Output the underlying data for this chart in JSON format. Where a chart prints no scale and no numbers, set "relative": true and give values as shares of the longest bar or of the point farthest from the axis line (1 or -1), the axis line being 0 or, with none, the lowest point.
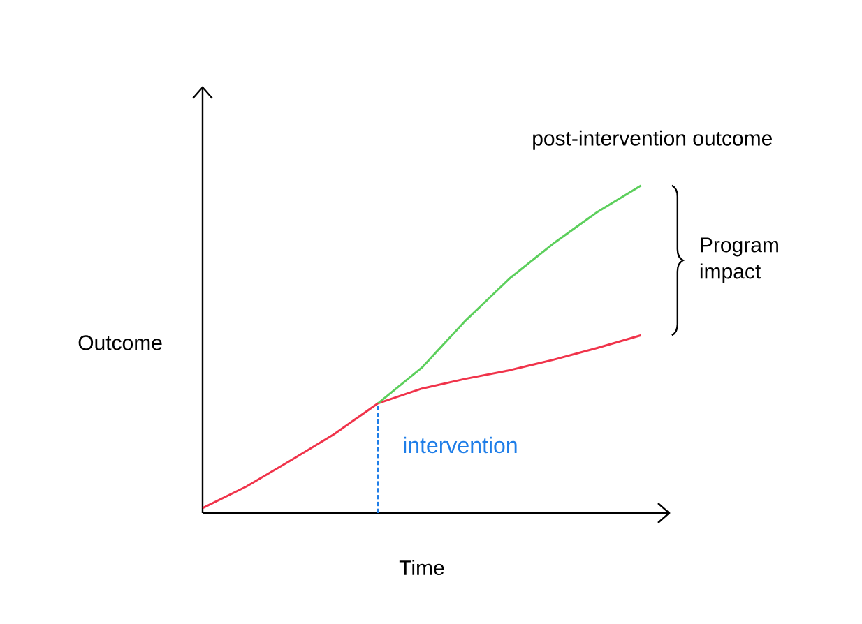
{
  "chart_data": {
    "type": "line",
    "relative": true,
    "xlabel": "Time",
    "ylabel": "Outcome",
    "categories": [
      null,
      null,
      null,
      null,
      null,
      null,
      null,
      null,
      null,
      null,
      null
    ],
    "series": [
      {
        "color": "#f0334a",
        "values": [
          0.015,
          0.081,
          0.16,
          0.241,
          0.335,
          0.38,
          0.41,
          0.436,
          0.468,
          0.504,
          0.543
        ]
      },
      {
        "name": "post-intervention outcome",
        "color": "#5ccf5c",
        "values": [
          null,
          null,
          null,
          null,
          0.335,
          0.444,
          0.588,
          0.716,
          0.823,
          0.919,
          1
        ]
      }
    ],
    "annotations": [
      "Program impact",
      "intervention"
    ],
    "marker": "none",
    "line_style": "solid"
  }
}
